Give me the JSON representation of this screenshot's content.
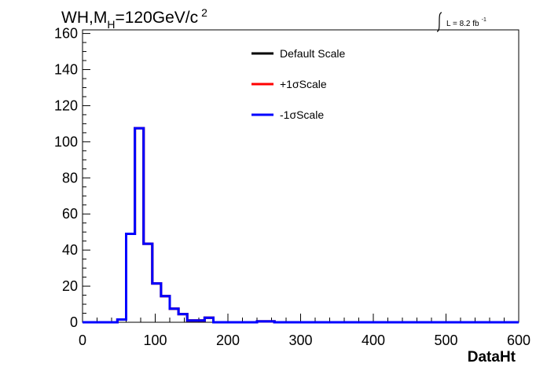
{
  "chart_data": {
    "type": "step-histogram",
    "title": "WH,M",
    "title_sub": "H",
    "title_rest": "=120GeV/c",
    "title_sup": "2",
    "lumi_label": "L = 8.2 fb",
    "lumi_sup": "-1",
    "xlabel": "DataHt",
    "ylabel": "",
    "xlim": [
      0,
      600
    ],
    "ylim": [
      0,
      162
    ],
    "x_ticks": [
      "0",
      "100",
      "200",
      "300",
      "400",
      "500",
      "600"
    ],
    "y_ticks": [
      "0",
      "20",
      "40",
      "60",
      "80",
      "100",
      "120",
      "140",
      "160"
    ],
    "bin_width": 12,
    "bin_lows": [
      0,
      12,
      24,
      36,
      48,
      60,
      72,
      84,
      96,
      108,
      120,
      132,
      144,
      156,
      168,
      180,
      192,
      204,
      216,
      228,
      240,
      252,
      264
    ],
    "legend_position": "top-center",
    "series": [
      {
        "name": "Default Scale",
        "color": "#000000",
        "values": [
          0,
          0,
          0,
          0,
          1.5,
          49,
          107.5,
          43.5,
          21.5,
          14.5,
          7.5,
          4.5,
          1,
          1,
          2.5,
          0,
          0,
          0,
          0,
          0,
          0.5,
          0.5,
          0
        ]
      },
      {
        "name": "+1σScale",
        "color": "#ff0000",
        "values": [
          0,
          0,
          0,
          0,
          1.5,
          49,
          107.5,
          43.5,
          21.5,
          14.5,
          7.5,
          4.5,
          1,
          1,
          2.5,
          0,
          0,
          0,
          0,
          0,
          0.5,
          0.5,
          0
        ]
      },
      {
        "name": "-1σScale",
        "color": "#0000ff",
        "values": [
          0,
          0,
          0,
          0,
          1.5,
          49,
          107.5,
          43.5,
          21.5,
          14.5,
          7.5,
          4.5,
          1,
          1,
          2.5,
          0,
          0,
          0,
          0,
          0,
          0.5,
          0.5,
          0
        ]
      }
    ]
  }
}
